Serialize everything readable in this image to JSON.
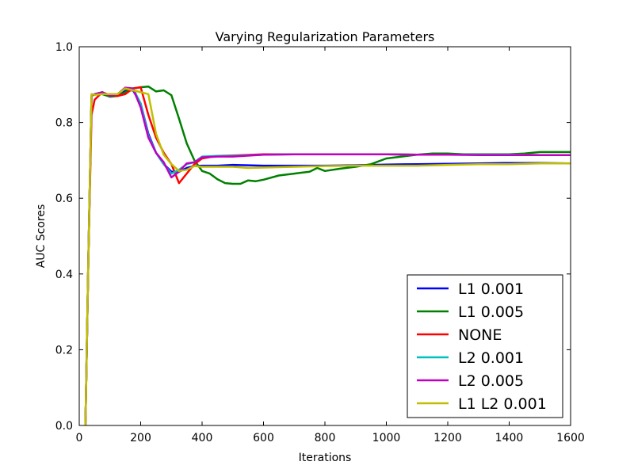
{
  "chart_data": {
    "type": "line",
    "title": "Varying Regularization Parameters",
    "xlabel": "Iterations",
    "ylabel": "AUC Scores",
    "xlim": [
      0,
      1600
    ],
    "ylim": [
      0.0,
      1.0
    ],
    "xticks": [
      "0",
      "200",
      "400",
      "600",
      "800",
      "1000",
      "1200",
      "1400",
      "1600"
    ],
    "yticks": [
      "0.0",
      "0.2",
      "0.4",
      "0.6",
      "0.8",
      "1.0"
    ],
    "xtick_values": [
      0,
      200,
      400,
      600,
      800,
      1000,
      1200,
      1400,
      1600
    ],
    "ytick_values": [
      0.0,
      0.2,
      0.4,
      0.6,
      0.8,
      1.0
    ],
    "grid": false,
    "legend_position": "lower-right",
    "series": [
      {
        "name": "L1 0.001",
        "color": "#0000ff",
        "x": [
          20,
          30,
          40,
          50,
          75,
          100,
          125,
          150,
          175,
          200,
          225,
          250,
          275,
          300,
          325,
          350,
          375,
          400,
          450,
          500,
          600,
          700,
          800,
          900,
          1000,
          1100,
          1200,
          1300,
          1400,
          1500,
          1600
        ],
        "y": [
          0.0,
          0.45,
          0.87,
          0.875,
          0.88,
          0.87,
          0.875,
          0.885,
          0.885,
          0.85,
          0.77,
          0.72,
          0.69,
          0.67,
          0.67,
          0.68,
          0.685,
          0.686,
          0.686,
          0.688,
          0.686,
          0.686,
          0.686,
          0.687,
          0.689,
          0.69,
          0.691,
          0.692,
          0.693,
          0.693,
          0.692
        ]
      },
      {
        "name": "L1 0.005",
        "color": "#008000",
        "x": [
          20,
          30,
          40,
          50,
          75,
          100,
          125,
          150,
          175,
          200,
          225,
          250,
          275,
          300,
          325,
          350,
          375,
          400,
          425,
          450,
          475,
          500,
          525,
          550,
          575,
          600,
          650,
          700,
          750,
          775,
          800,
          850,
          900,
          950,
          1000,
          1050,
          1100,
          1150,
          1200,
          1250,
          1300,
          1400,
          1450,
          1500,
          1550,
          1600
        ],
        "y": [
          0.0,
          0.45,
          0.87,
          0.875,
          0.875,
          0.868,
          0.87,
          0.88,
          0.89,
          0.893,
          0.895,
          0.882,
          0.885,
          0.872,
          0.81,
          0.745,
          0.7,
          0.672,
          0.665,
          0.65,
          0.64,
          0.638,
          0.638,
          0.647,
          0.645,
          0.649,
          0.66,
          0.665,
          0.67,
          0.68,
          0.672,
          0.678,
          0.683,
          0.69,
          0.705,
          0.71,
          0.715,
          0.718,
          0.718,
          0.716,
          0.716,
          0.716,
          0.718,
          0.722,
          0.722,
          0.722
        ]
      },
      {
        "name": "NONE",
        "color": "#ff0000",
        "x": [
          20,
          30,
          40,
          50,
          75,
          100,
          125,
          150,
          175,
          200,
          225,
          250,
          275,
          300,
          325,
          350,
          375,
          400,
          450,
          500,
          600,
          700,
          800,
          900,
          1000,
          1100,
          1200,
          1300,
          1400,
          1500,
          1600
        ],
        "y": [
          0.0,
          0.45,
          0.82,
          0.86,
          0.88,
          0.872,
          0.87,
          0.875,
          0.89,
          0.893,
          0.82,
          0.76,
          0.72,
          0.69,
          0.64,
          0.665,
          0.69,
          0.705,
          0.712,
          0.713,
          0.716,
          0.716,
          0.716,
          0.716,
          0.716,
          0.715,
          0.715,
          0.715,
          0.715,
          0.714,
          0.714
        ]
      },
      {
        "name": "L2 0.001",
        "color": "#00bfbf",
        "x": [
          20,
          30,
          40,
          50,
          75,
          100,
          125,
          150,
          175,
          200,
          225,
          250,
          275,
          300,
          325,
          350,
          375,
          400,
          450,
          500,
          600,
          700,
          800,
          900,
          1000,
          1100,
          1200,
          1300,
          1400,
          1500,
          1600
        ],
        "y": [
          0.0,
          0.45,
          0.87,
          0.875,
          0.88,
          0.87,
          0.875,
          0.89,
          0.89,
          0.85,
          0.765,
          0.72,
          0.69,
          0.665,
          0.675,
          0.69,
          0.695,
          0.71,
          0.712,
          0.712,
          0.715,
          0.716,
          0.716,
          0.716,
          0.716,
          0.715,
          0.715,
          0.715,
          0.715,
          0.714,
          0.714
        ]
      },
      {
        "name": "L2 0.005",
        "color": "#bf00bf",
        "x": [
          20,
          30,
          40,
          50,
          75,
          100,
          125,
          150,
          175,
          200,
          225,
          250,
          275,
          300,
          325,
          350,
          375,
          400,
          450,
          500,
          600,
          700,
          800,
          900,
          1000,
          1100,
          1200,
          1300,
          1400,
          1500,
          1600
        ],
        "y": [
          0.0,
          0.45,
          0.87,
          0.875,
          0.88,
          0.87,
          0.875,
          0.892,
          0.89,
          0.84,
          0.76,
          0.72,
          0.695,
          0.655,
          0.67,
          0.692,
          0.695,
          0.708,
          0.71,
          0.71,
          0.715,
          0.716,
          0.716,
          0.716,
          0.716,
          0.715,
          0.715,
          0.714,
          0.714,
          0.714,
          0.714
        ]
      },
      {
        "name": "L1 L2 0.001",
        "color": "#bfbf00",
        "x": [
          20,
          30,
          40,
          50,
          75,
          100,
          125,
          150,
          175,
          200,
          225,
          250,
          275,
          300,
          325,
          350,
          375,
          400,
          450,
          500,
          550,
          600,
          700,
          800,
          900,
          1000,
          1100,
          1200,
          1300,
          1400,
          1500,
          1600
        ],
        "y": [
          0.0,
          0.45,
          0.875,
          0.873,
          0.875,
          0.875,
          0.875,
          0.89,
          0.885,
          0.88,
          0.875,
          0.77,
          0.715,
          0.69,
          0.672,
          0.675,
          0.685,
          0.683,
          0.683,
          0.683,
          0.68,
          0.681,
          0.683,
          0.685,
          0.686,
          0.686,
          0.686,
          0.688,
          0.69,
          0.69,
          0.692,
          0.692
        ]
      }
    ]
  }
}
